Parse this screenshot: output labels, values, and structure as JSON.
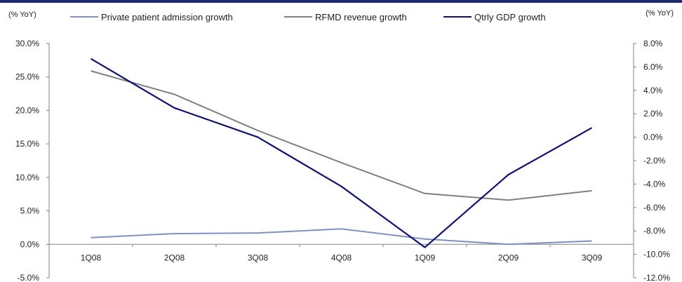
{
  "chart_data": {
    "type": "line",
    "left_unit": "(% YoY)",
    "right_unit": "(% YoY)",
    "categories": [
      "1Q08",
      "2Q08",
      "3Q08",
      "4Q08",
      "1Q09",
      "2Q09",
      "3Q09"
    ],
    "y_left": {
      "min": -5,
      "max": 30,
      "step": 5,
      "tick_labels": [
        "-5.0%",
        "0.0%",
        "5.0%",
        "10.0%",
        "15.0%",
        "20.0%",
        "25.0%",
        "30.0%"
      ]
    },
    "y_right": {
      "min": -12,
      "max": 8,
      "step": 2,
      "tick_labels": [
        "-12.0%",
        "-10.0%",
        "-8.0%",
        "-6.0%",
        "-4.0%",
        "-2.0%",
        "0.0%",
        "2.0%",
        "4.0%",
        "6.0%",
        "8.0%"
      ]
    },
    "series": [
      {
        "name": "Private patient admission growth",
        "axis": "left",
        "color": "#8090c0",
        "values": [
          1.0,
          1.6,
          1.7,
          2.3,
          0.8,
          0.0,
          0.5
        ]
      },
      {
        "name": "RFMD revenue growth",
        "axis": "left",
        "color": "#808080",
        "values": [
          25.9,
          22.4,
          17.0,
          12.2,
          7.6,
          6.6,
          8.0
        ]
      },
      {
        "name": "Qtrly GDP growth",
        "axis": "right",
        "color": "#101070",
        "values": [
          6.7,
          2.5,
          0.0,
          -4.2,
          -9.4,
          -3.2,
          0.8
        ]
      }
    ],
    "legend_position": "top",
    "grid": false
  }
}
